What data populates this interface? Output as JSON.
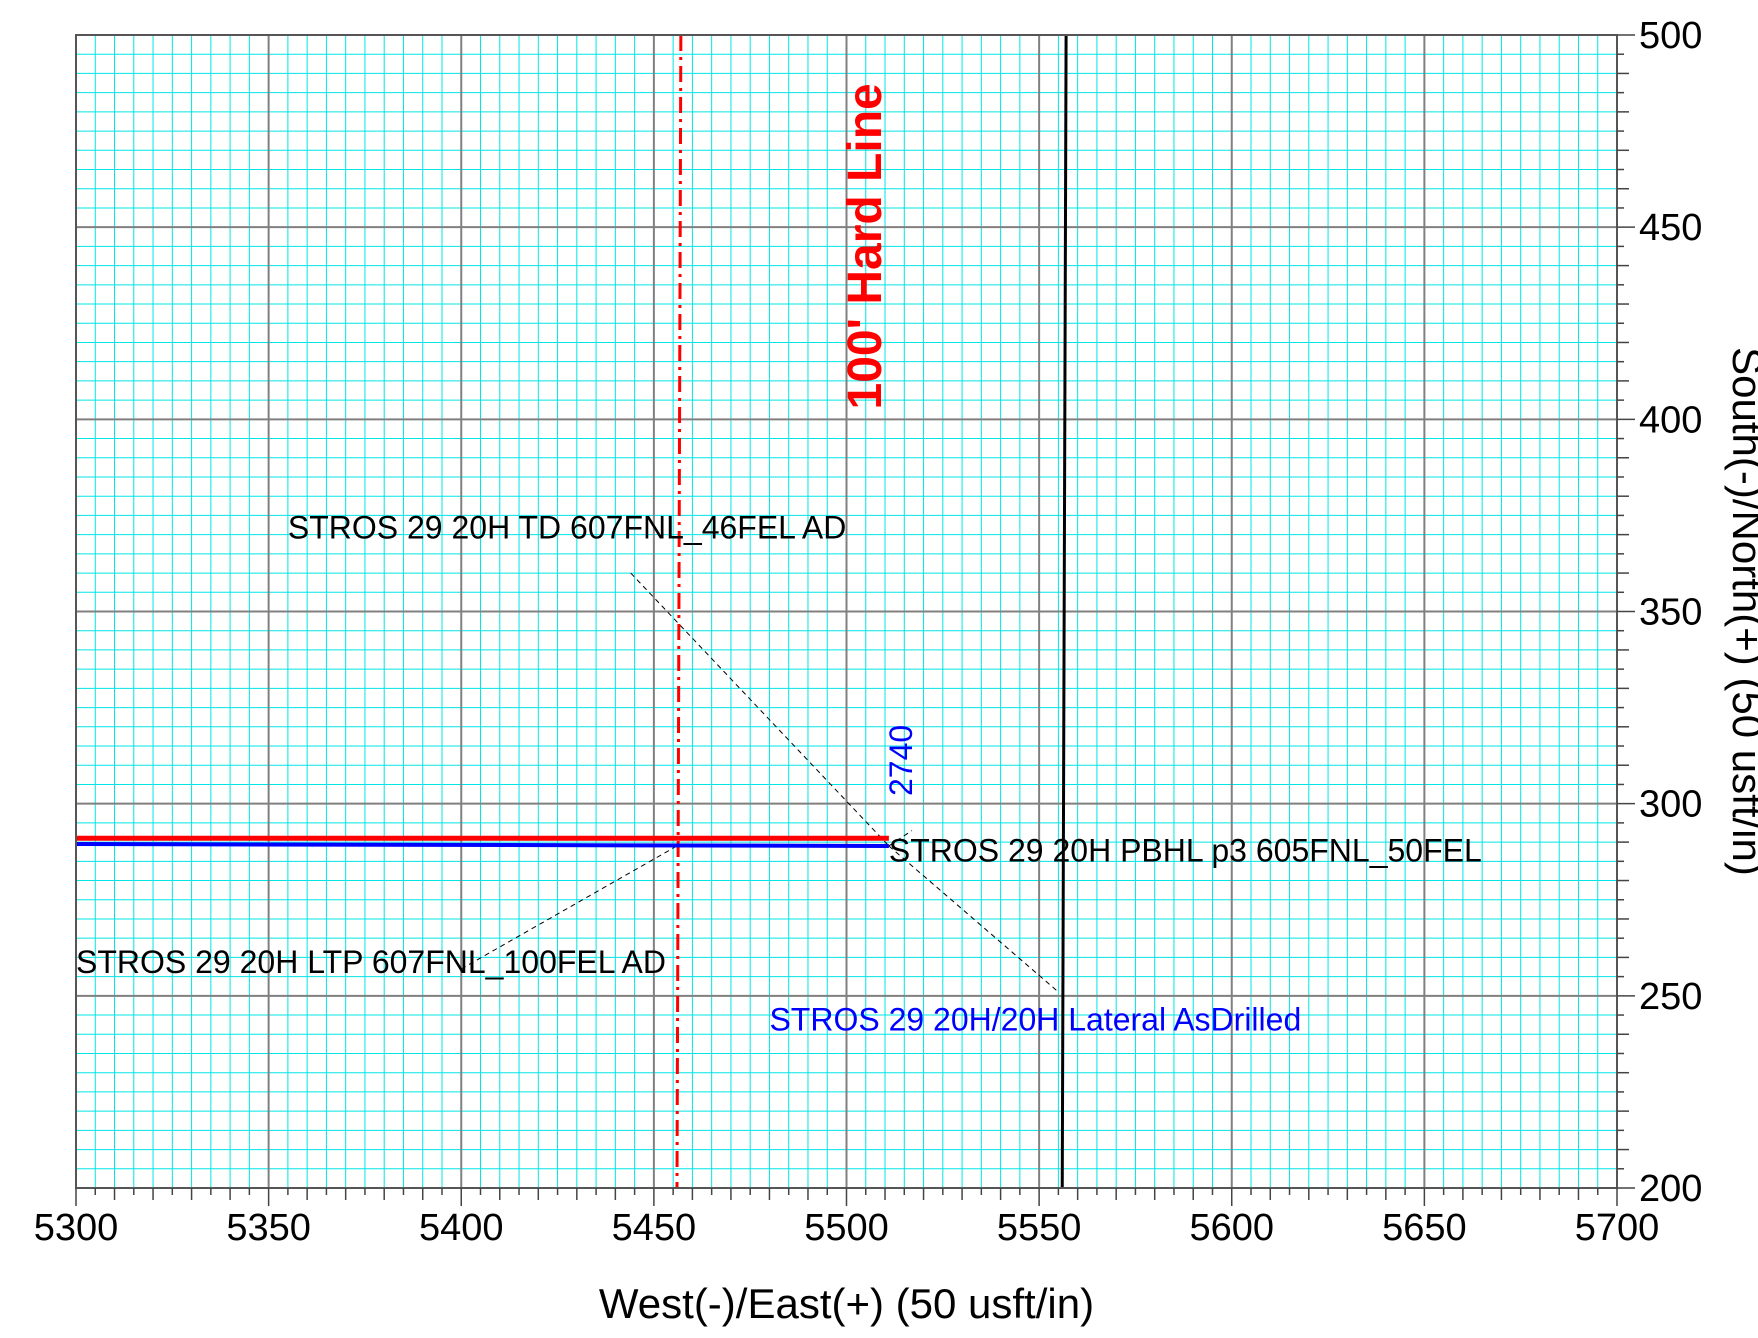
{
  "chart_data": {
    "type": "line",
    "title": "",
    "xlabel": "West(-)/East(+) (50 usft/in)",
    "ylabel": "South(-)/North(+) (50 usft/in)",
    "xlim": [
      5300,
      5700
    ],
    "ylim": [
      200,
      500
    ],
    "x_ticks": [
      5300,
      5350,
      5400,
      5450,
      5500,
      5550,
      5600,
      5650,
      5700
    ],
    "y_ticks": [
      200,
      250,
      300,
      350,
      400,
      450,
      500
    ],
    "x_tick_labels": [
      "5300",
      "5350",
      "5400",
      "5450",
      "5500",
      "5550",
      "5600",
      "5650",
      "5700"
    ],
    "y_tick_labels": [
      "200",
      "250",
      "300",
      "350",
      "400",
      "450",
      "500"
    ],
    "grid": true,
    "colors": {
      "minor_grid": "#00E5E5",
      "major_grid": "#808080",
      "plan_line": "#FF0000",
      "asdrilled_line": "#0000FF",
      "hard_line": "#FF0000",
      "lease_line": "#000000",
      "label_text": "#000000",
      "asdrilled_text": "#0000FF",
      "hard_line_text": "#FF0000"
    },
    "series": [
      {
        "key": "plan",
        "points": [
          [
            5300,
            291
          ],
          [
            5511,
            291
          ]
        ]
      },
      {
        "key": "asdrilled",
        "points": [
          [
            5300,
            289.5
          ],
          [
            5511,
            289
          ]
        ]
      }
    ],
    "vertical_lines": [
      {
        "key": "hard_line",
        "points": [
          [
            5457,
            500
          ],
          [
            5456,
            200
          ]
        ],
        "style": "dashdot"
      },
      {
        "key": "lease_line",
        "points": [
          [
            5557,
            500
          ],
          [
            5556,
            200
          ]
        ],
        "style": "solid"
      }
    ],
    "annotations": {
      "hard_line_label": {
        "text": "100' Hard Line",
        "x": 5509,
        "y": 445
      },
      "md_label": {
        "text": "2740",
        "x": 5517,
        "y": 302
      },
      "td_label": {
        "text": "STROS 29 20H TD 607FNL_46FEL AD",
        "x": 5355,
        "y": 369
      },
      "pbhl_label": {
        "text": "STROS 29 20H PBHL p3 605FNL_50FEL",
        "x": 5511,
        "y": 285
      },
      "ltp_label": {
        "text": "STROS 29 20H LTP 607FNL_100FEL AD",
        "x": 5300,
        "y": 256
      },
      "asdrilled_label": {
        "text": "STROS 29 20H/20H Lateral AsDrilled",
        "x": 5480,
        "y": 241
      }
    },
    "leader_lines": [
      {
        "from": [
          5444,
          360
        ],
        "to": [
          5511,
          289
        ]
      },
      {
        "from": [
          5511,
          289
        ],
        "to": [
          5555,
          251
        ]
      },
      {
        "from": [
          5400,
          257
        ],
        "to": [
          5456,
          289
        ]
      },
      {
        "from": [
          5511,
          289
        ],
        "to": [
          5517,
          293
        ]
      }
    ]
  }
}
